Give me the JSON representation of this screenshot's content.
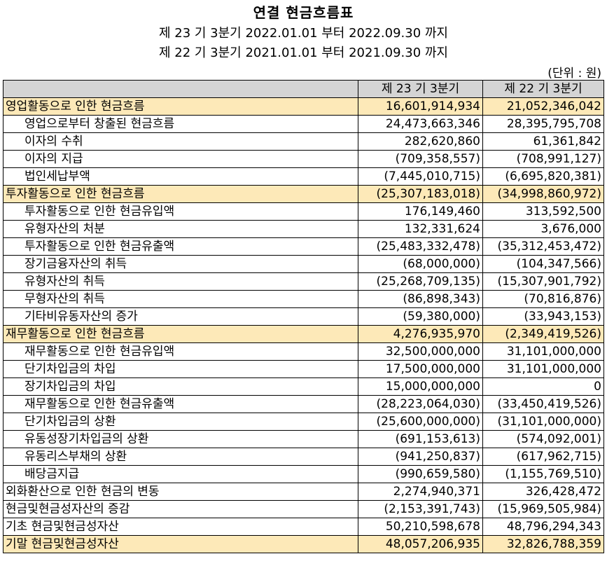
{
  "header": {
    "title": "연결 현금흐름표",
    "period_current": "제 23 기 3분기 2022.01.01 부터 2022.09.30 까지",
    "period_prior": "제 22 기 3분기 2021.01.01 부터 2021.09.30 까지",
    "unit": "(단위 : 원)"
  },
  "table": {
    "columns": [
      "",
      "제 23 기 3분기",
      "제 22 기 3분기"
    ],
    "rows": [
      {
        "label": "영업활동으로 인한 현금흐름",
        "current": "16,601,914,934",
        "prior": "21,052,346,042",
        "type": "section"
      },
      {
        "label": "영업으로부터 창출된 현금흐름",
        "current": "24,473,663,346",
        "prior": "28,395,795,708",
        "type": "indent"
      },
      {
        "label": "이자의 수취",
        "current": "282,620,860",
        "prior": "61,361,842",
        "type": "indent"
      },
      {
        "label": "이자의 지급",
        "current": "(709,358,557)",
        "prior": "(708,991,127)",
        "type": "indent"
      },
      {
        "label": "법인세납부액",
        "current": "(7,445,010,715)",
        "prior": "(6,695,820,381)",
        "type": "indent"
      },
      {
        "label": "투자활동으로 인한 현금흐름",
        "current": "(25,307,183,018)",
        "prior": "(34,998,860,972)",
        "type": "section"
      },
      {
        "label": "투자활동으로 인한 현금유입액",
        "current": "176,149,460",
        "prior": "313,592,500",
        "type": "indent"
      },
      {
        "label": "유형자산의 처분",
        "current": "132,331,624",
        "prior": "3,676,000",
        "type": "indent"
      },
      {
        "label": "투자활동으로 인한 현금유출액",
        "current": "(25,483,332,478)",
        "prior": "(35,312,453,472)",
        "type": "indent"
      },
      {
        "label": "장기금융자산의 취득",
        "current": "(68,000,000)",
        "prior": "(104,347,566)",
        "type": "indent"
      },
      {
        "label": "유형자산의 취득",
        "current": "(25,268,709,135)",
        "prior": "(15,307,901,792)",
        "type": "indent"
      },
      {
        "label": "무형자산의 취득",
        "current": "(86,898,343)",
        "prior": "(70,816,876)",
        "type": "indent"
      },
      {
        "label": "기타비유동자산의 증가",
        "current": "(59,380,000)",
        "prior": "(33,943,153)",
        "type": "indent"
      },
      {
        "label": "재무활동으로 인한 현금흐름",
        "current": "4,276,935,970",
        "prior": "(2,349,419,526)",
        "type": "section"
      },
      {
        "label": "재무활동으로 인한 현금유입액",
        "current": "32,500,000,000",
        "prior": "31,101,000,000",
        "type": "indent"
      },
      {
        "label": "단기차입금의 차입",
        "current": "17,500,000,000",
        "prior": "31,101,000,000",
        "type": "indent"
      },
      {
        "label": "장기차입금의 차입",
        "current": "15,000,000,000",
        "prior": "0",
        "type": "indent"
      },
      {
        "label": "재무활동으로 인한 현금유출액",
        "current": "(28,223,064,030)",
        "prior": "(33,450,419,526)",
        "type": "indent"
      },
      {
        "label": "단기차입금의 상환",
        "current": "(25,600,000,000)",
        "prior": "(31,101,000,000)",
        "type": "indent"
      },
      {
        "label": "유동성장기차입금의 상환",
        "current": "(691,153,613)",
        "prior": "(574,092,001)",
        "type": "indent"
      },
      {
        "label": "유동리스부채의 상환",
        "current": "(941,250,837)",
        "prior": "(617,962,715)",
        "type": "indent"
      },
      {
        "label": "배당금지급",
        "current": "(990,659,580)",
        "prior": "(1,155,769,510)",
        "type": "indent"
      },
      {
        "label": "외화환산으로 인한 현금의 변동",
        "current": "2,274,940,371",
        "prior": "326,428,472",
        "type": "total"
      },
      {
        "label": "현금및현금성자산의 증감",
        "current": "(2,153,391,743)",
        "prior": "(15,969,505,984)",
        "type": "total"
      },
      {
        "label": "기초 현금및현금성자산",
        "current": "50,210,598,678",
        "prior": "48,796,294,343",
        "type": "total"
      },
      {
        "label": "기말 현금및현금성자산",
        "current": "48,057,206,935",
        "prior": "32,826,788,359",
        "type": "section"
      }
    ]
  }
}
